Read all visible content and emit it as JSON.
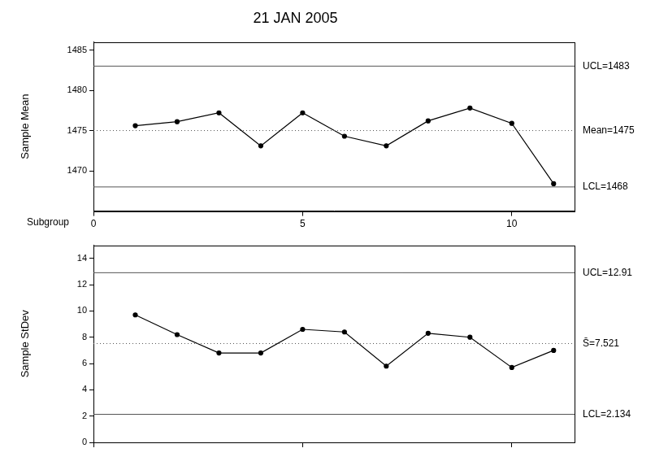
{
  "chart_data": [
    {
      "type": "line",
      "title": "21 JAN 2005",
      "x_label": "Subgroup",
      "y_label": "Sample Mean",
      "x": [
        1,
        2,
        3,
        4,
        5,
        6,
        7,
        8,
        9,
        10,
        11
      ],
      "values": [
        1475.6,
        1476.1,
        1477.2,
        1473.1,
        1477.2,
        1474.3,
        1473.1,
        1476.2,
        1477.8,
        1475.9,
        1468.4
      ],
      "color": "#000000",
      "marker": "circle",
      "xlim": [
        0,
        11.5
      ],
      "xticks": [
        0,
        5,
        10
      ],
      "ylim": [
        1465,
        1486
      ],
      "yticks": [
        1470,
        1475,
        1480,
        1485
      ],
      "grid": false,
      "control_limits": [
        {
          "label": "UCL=1483",
          "value": 1483,
          "line_style": "solid"
        },
        {
          "label": "Mean=1475",
          "value": 1475,
          "line_style": "dotted"
        },
        {
          "label": "LCL=1468",
          "value": 1468,
          "line_style": "solid"
        }
      ]
    },
    {
      "type": "line",
      "y_label": "Sample StDev",
      "x": [
        1,
        2,
        3,
        4,
        5,
        6,
        7,
        8,
        9,
        10,
        11
      ],
      "values": [
        9.7,
        8.2,
        6.8,
        6.8,
        8.6,
        8.4,
        5.8,
        8.3,
        8.0,
        5.7,
        7.0
      ],
      "color": "#000000",
      "marker": "circle",
      "xlim": [
        0,
        11.5
      ],
      "xticks": [
        0,
        5,
        10
      ],
      "ylim": [
        0,
        15
      ],
      "yticks": [
        0,
        2,
        4,
        6,
        8,
        10,
        12,
        14
      ],
      "grid": false,
      "tick_labels": "y",
      "control_limits": [
        {
          "label": "UCL=12.91",
          "value": 12.91,
          "line_style": "solid"
        },
        {
          "label": "S̄=7.521",
          "value": 7.521,
          "line_style": "dotted"
        },
        {
          "label": "LCL=2.134",
          "value": 2.134,
          "line_style": "solid"
        }
      ]
    }
  ]
}
